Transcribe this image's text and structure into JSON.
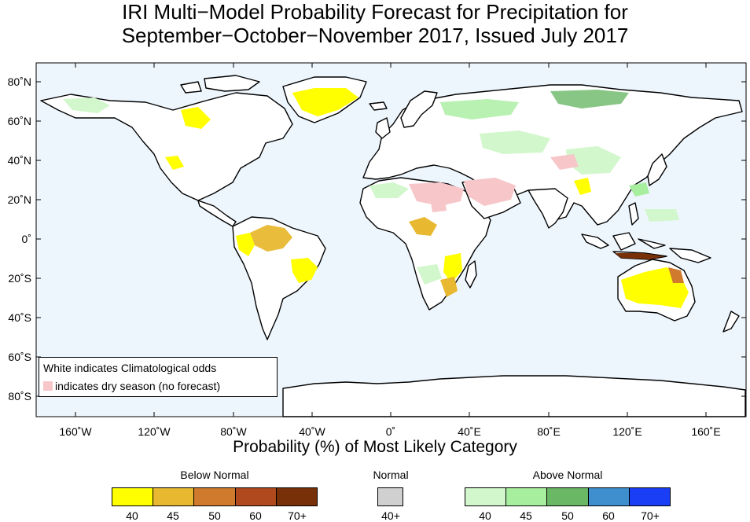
{
  "title": {
    "line1": "IRI Multi−Model Probability Forecast for Precipitation for",
    "line2": "September−October−November 2017, Issued July 2017"
  },
  "axes": {
    "y_labels": [
      "80˚N",
      "60˚N",
      "40˚N",
      "20˚N",
      "0˚",
      "20˚S",
      "40˚S",
      "60˚S",
      "80˚S"
    ],
    "x_labels": [
      "160˚W",
      "120˚W",
      "80˚W",
      "40˚W",
      "0˚",
      "40˚E",
      "80˚E",
      "120˚E",
      "160˚E"
    ],
    "x_title": "Probability (%) of Most Likely Category"
  },
  "map_legend": {
    "line1": "White indicates Climatological odds",
    "line2": "indicates dry season (no forecast)"
  },
  "colorbar": {
    "below": {
      "title": "Below Normal",
      "colors": [
        "#ffff00",
        "#e8b830",
        "#d07a2e",
        "#b04a1e",
        "#783008"
      ],
      "ticks": [
        "40",
        "45",
        "50",
        "60",
        "70+"
      ]
    },
    "normal": {
      "title": "Normal",
      "colors": [
        "#d0d0d0"
      ],
      "ticks": [
        "40+"
      ]
    },
    "above": {
      "title": "Above Normal",
      "colors": [
        "#d2f7cc",
        "#a8ee9f",
        "#6ab866",
        "#3f8fce",
        "#1a3ef5"
      ],
      "ticks": [
        "40",
        "45",
        "50",
        "60",
        "70+"
      ]
    }
  },
  "colors": {
    "ocean": "#eef6fd",
    "dry_season": "#f7c6c9",
    "coastline": "#000000",
    "borders": "#9a9a9a"
  }
}
